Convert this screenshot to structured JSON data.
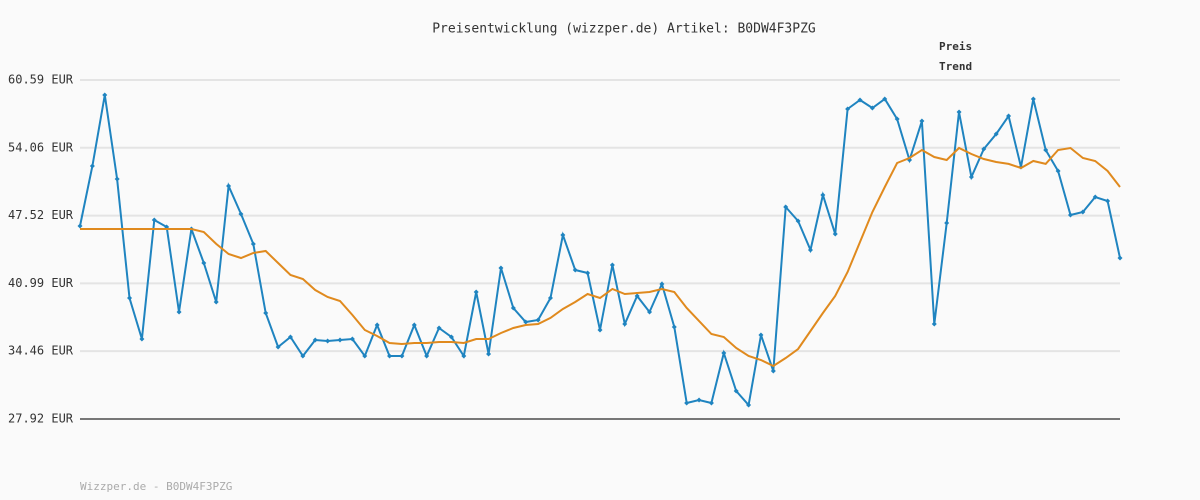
{
  "chart_data": {
    "type": "line",
    "title": "Preisentwicklung (wizzper.de) Artikel: B0DW4F3PZG",
    "footer": "Wizzper.de - B0DW4F3PZG",
    "ylim": [
      27.92,
      60.59
    ],
    "yticks": [
      {
        "value": 27.92,
        "label": "27.92 EUR"
      },
      {
        "value": 34.46,
        "label": "34.46 EUR"
      },
      {
        "value": 40.99,
        "label": "40.99 EUR"
      },
      {
        "value": 47.52,
        "label": "47.52 EUR"
      },
      {
        "value": 54.06,
        "label": "54.06 EUR"
      },
      {
        "value": 60.59,
        "label": "60.59 EUR"
      }
    ],
    "grid": true,
    "legend": "top-right",
    "series": [
      {
        "name": "Preis",
        "color": "#1f84c0",
        "markers": true,
        "values": [
          46.52,
          52.3,
          59.14,
          51.05,
          39.58,
          35.63,
          47.1,
          46.42,
          38.23,
          46.23,
          42.95,
          39.2,
          50.37,
          47.68,
          44.79,
          38.14,
          34.86,
          35.82,
          33.99,
          35.53,
          35.44,
          35.53,
          35.63,
          33.99,
          36.98,
          33.99,
          33.99,
          36.98,
          33.99,
          36.69,
          35.82,
          33.99,
          40.16,
          34.18,
          42.47,
          38.62,
          37.27,
          37.46,
          39.58,
          45.65,
          42.28,
          41.99,
          36.5,
          42.76,
          37.08,
          39.77,
          38.23,
          40.93,
          36.79,
          29.46,
          29.75,
          29.46,
          34.28,
          30.62,
          29.27,
          36.02,
          32.55,
          48.35,
          47.0,
          44.21,
          49.51,
          45.75,
          57.8,
          58.66,
          57.89,
          58.76,
          56.83,
          52.88,
          56.64,
          37.08,
          46.81,
          57.51,
          51.24,
          53.94,
          55.39,
          57.12,
          52.21,
          58.76,
          53.84,
          51.82,
          47.58,
          47.87,
          49.31,
          48.93,
          43.44
        ]
      },
      {
        "name": "Trend",
        "color": "#e08a1e",
        "markers": false,
        "values": [
          46.23,
          46.23,
          46.23,
          46.23,
          46.23,
          46.23,
          46.23,
          46.23,
          46.23,
          46.23,
          45.94,
          44.79,
          43.82,
          43.44,
          43.92,
          44.11,
          42.95,
          41.8,
          41.41,
          40.35,
          39.68,
          39.29,
          37.94,
          36.5,
          35.92,
          35.24,
          35.15,
          35.24,
          35.24,
          35.34,
          35.34,
          35.24,
          35.63,
          35.63,
          36.21,
          36.69,
          36.98,
          37.08,
          37.66,
          38.52,
          39.2,
          39.97,
          39.58,
          40.45,
          39.97,
          40.06,
          40.16,
          40.45,
          40.16,
          38.62,
          37.37,
          36.11,
          35.82,
          34.76,
          33.99,
          33.61,
          33.03,
          33.8,
          34.67,
          36.4,
          38.14,
          39.77,
          42.09,
          44.98,
          47.87,
          50.28,
          52.59,
          53.07,
          53.84,
          53.17,
          52.88,
          54.04,
          53.46,
          52.98,
          52.69,
          52.5,
          52.11,
          52.78,
          52.5,
          53.84,
          54.04,
          53.07,
          52.78,
          51.82,
          50.28
        ]
      }
    ]
  }
}
